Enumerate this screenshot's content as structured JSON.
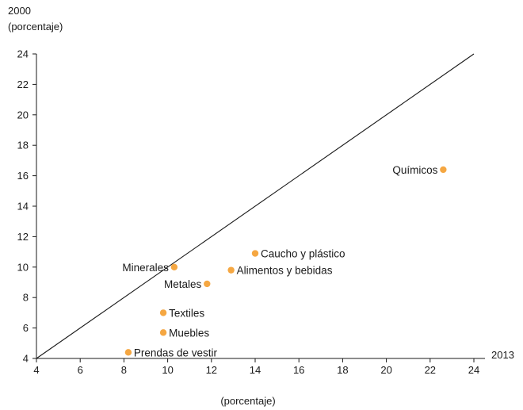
{
  "chart_data": {
    "type": "scatter",
    "title": "",
    "ylabel_line1": "2000",
    "ylabel_line2": "(porcentaje)",
    "xlabel_right": "2013",
    "xlabel_bottom": "(porcentaje)",
    "xlim": [
      4,
      24
    ],
    "ylim": [
      4,
      24
    ],
    "x_ticks": [
      4,
      6,
      8,
      10,
      12,
      14,
      16,
      18,
      20,
      22,
      24
    ],
    "y_ticks": [
      4,
      6,
      8,
      10,
      12,
      14,
      16,
      18,
      20,
      22,
      24
    ],
    "grid": false,
    "reference_line": {
      "from": [
        4,
        4
      ],
      "to": [
        24,
        24
      ]
    },
    "point_color": "#f5a742",
    "points": [
      {
        "label": "Químicos",
        "x": 22.6,
        "y": 16.4,
        "label_side": "left"
      },
      {
        "label": "Caucho y plástico",
        "x": 14.0,
        "y": 10.9,
        "label_side": "right"
      },
      {
        "label": "Alimentos y bebidas",
        "x": 12.9,
        "y": 9.8,
        "label_side": "right"
      },
      {
        "label": "Minerales",
        "x": 10.3,
        "y": 10.0,
        "label_side": "left"
      },
      {
        "label": "Metales",
        "x": 11.8,
        "y": 8.9,
        "label_side": "left"
      },
      {
        "label": "Textiles",
        "x": 9.8,
        "y": 7.0,
        "label_side": "right"
      },
      {
        "label": "Muebles",
        "x": 9.8,
        "y": 5.7,
        "label_side": "right"
      },
      {
        "label": "Prendas de vestir",
        "x": 8.2,
        "y": 4.4,
        "label_side": "right"
      }
    ]
  }
}
